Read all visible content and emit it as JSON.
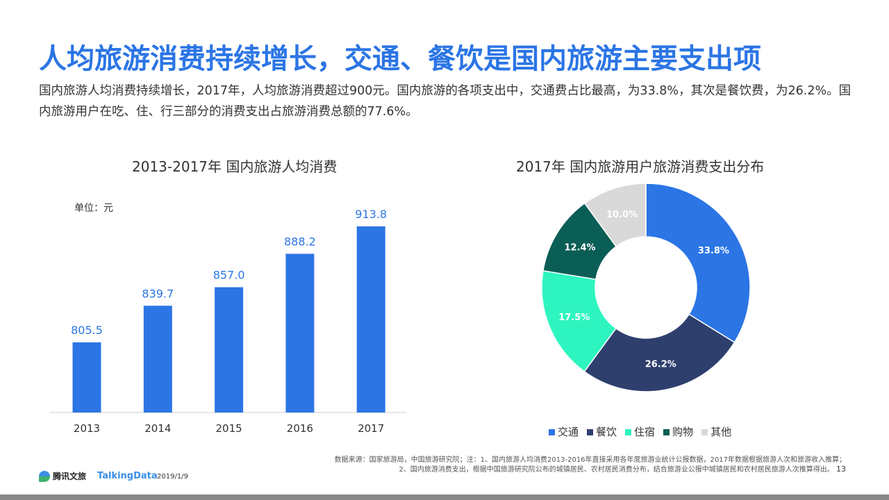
{
  "title": "人均旅游消费持续增长，交通、餐饮是国内旅游主要支出项",
  "description": "国内旅游人均消费持续增长，2017年，人均旅游消费超过900元。国内旅游的各项支出中，交通费占比最高，为33.8%，其次是餐饮费，为26.2%。国内旅游用户在吃、住、行三部分的消费支出占旅游消费总额的77.6%。",
  "chart_data": [
    {
      "type": "bar",
      "title": "2013-2017年 国内旅游人均消费",
      "unit_label": "单位：元",
      "categories": [
        "2013",
        "2014",
        "2015",
        "2016",
        "2017"
      ],
      "values": [
        805.5,
        839.7,
        857.0,
        888.2,
        913.8
      ],
      "value_labels": [
        "805.5",
        "839.7",
        "857.0",
        "888.2",
        "913.8"
      ],
      "ylim": [
        740,
        930
      ],
      "color": "#2b75e5"
    },
    {
      "type": "pie",
      "title": "2017年 国内旅游用户旅游消费支出分布",
      "categories": [
        "交通",
        "餐饮",
        "住宿",
        "购物",
        "其他"
      ],
      "values": [
        33.8,
        26.2,
        17.5,
        12.4,
        10.0
      ],
      "value_labels": [
        "33.8%",
        "26.2%",
        "17.5%",
        "12.4%",
        "10.0%"
      ],
      "colors": [
        "#2b75e5",
        "#2e3f6e",
        "#2ef5c0",
        "#0a5e55",
        "#d9d9d9"
      ],
      "donut": true,
      "legend": "bottom"
    }
  ],
  "footer": {
    "note": "数据来源：国家旅游局，中国旅游研究院；注：1、国内旅游人均消费2013-2016年直接采用各年度旅游业统计公报数据，2017年数据根据旅游人次和旅游收入推算；2、国内旅游消费支出，根据中国旅游研究院公布的城镇居民、农村居民消费分布，结合旅游业公报中城镇居民和农村居民旅游人次推算得出。",
    "page": "13",
    "logo1": "腾讯文旅",
    "logo2": "TalkingData",
    "date": "2019/1/9"
  }
}
